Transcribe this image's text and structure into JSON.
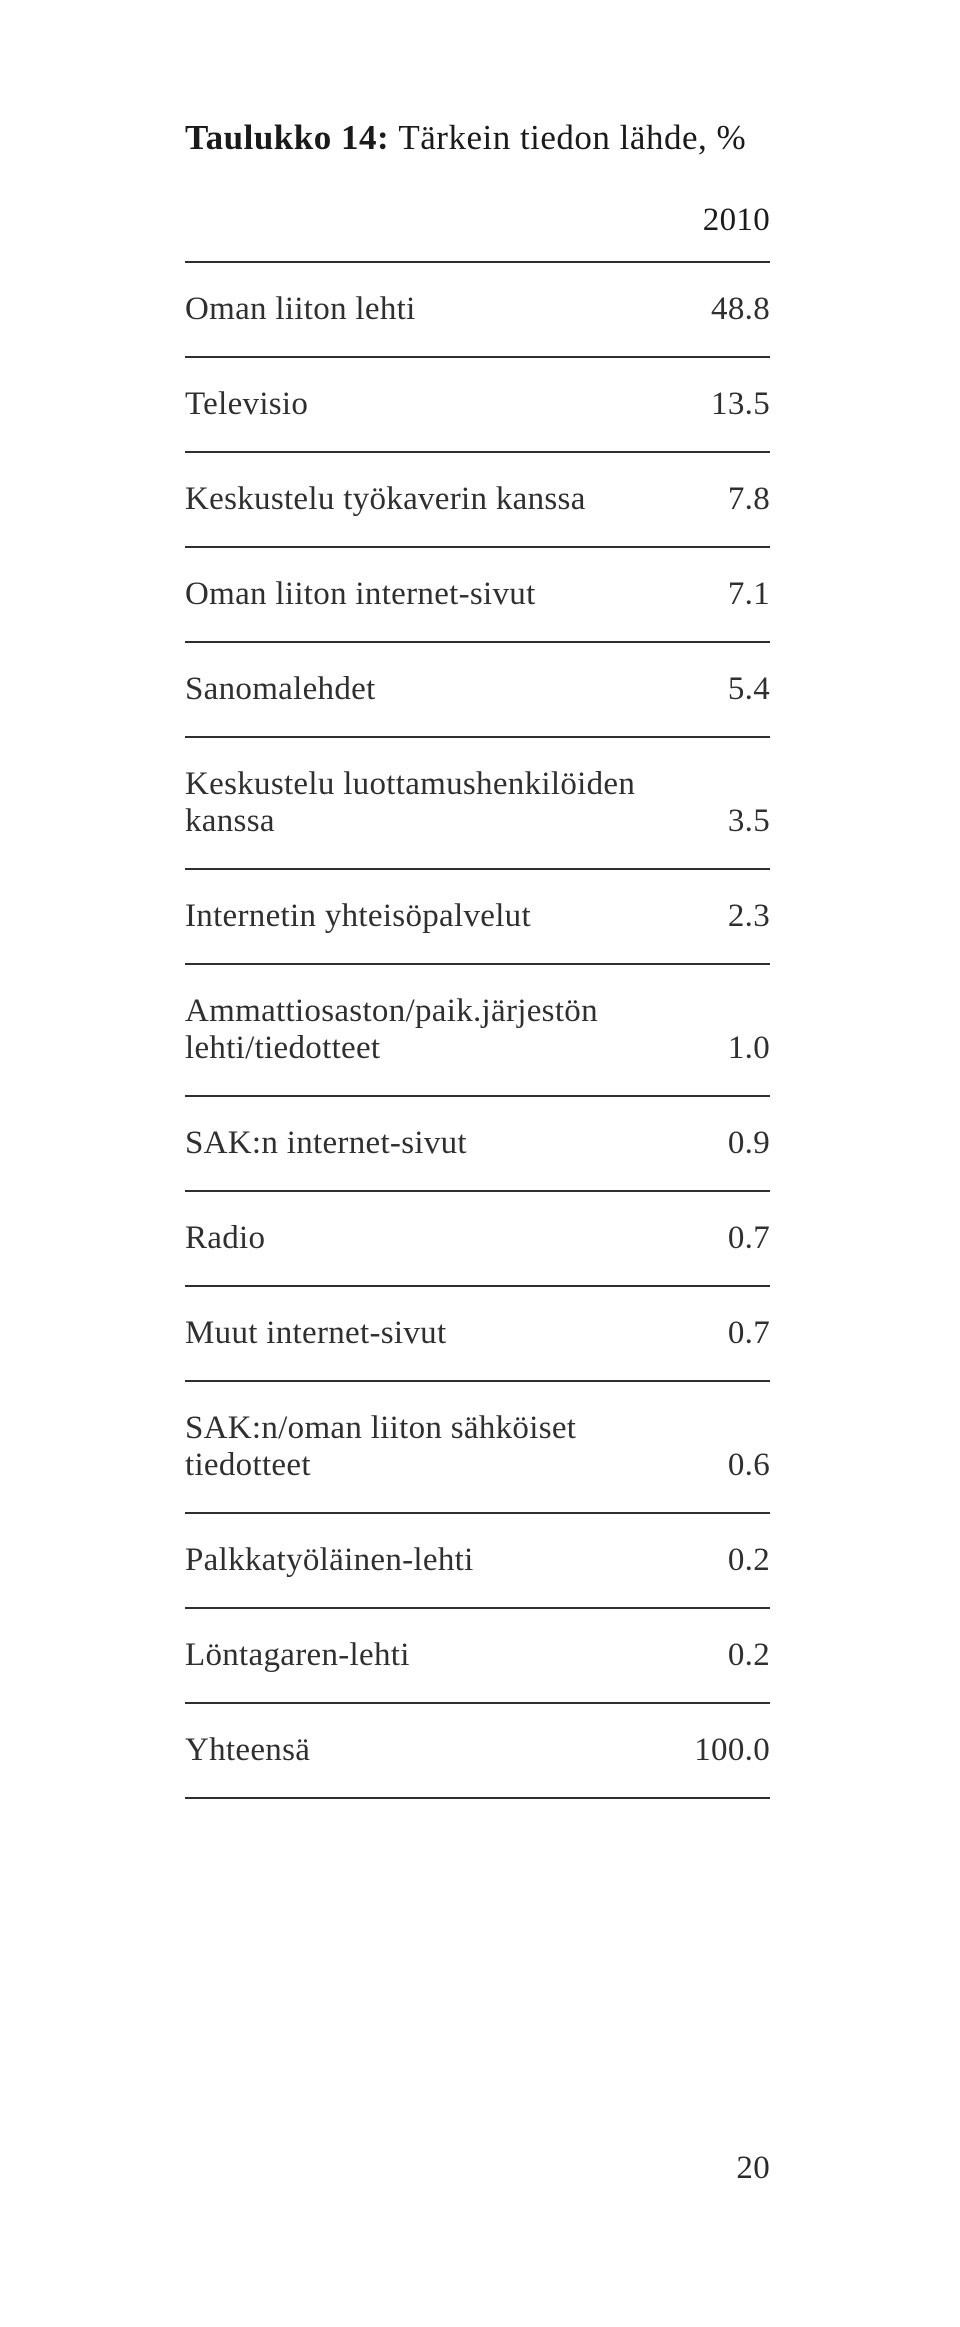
{
  "title_bold": "Taulukko 14: ",
  "title_rest": "Tärkein tiedon lähde, %",
  "header": "2010",
  "rows": [
    {
      "label": "Oman liiton lehti",
      "value": "48.8"
    },
    {
      "label": "Televisio",
      "value": "13.5"
    },
    {
      "label": "Keskustelu työkaverin kanssa",
      "value": "7.8"
    },
    {
      "label": "Oman liiton internet-sivut",
      "value": "7.1"
    },
    {
      "label": "Sanomalehdet",
      "value": "5.4"
    },
    {
      "label": "Keskustelu luottamushenkilöiden kanssa",
      "value": "3.5"
    },
    {
      "label": "Internetin yhteisöpalvelut",
      "value": "2.3"
    },
    {
      "label": "Ammattiosaston/paik.järjestön lehti/tiedotteet",
      "value": "1.0"
    },
    {
      "label": "SAK:n internet-sivut",
      "value": "0.9"
    },
    {
      "label": "Radio",
      "value": "0.7"
    },
    {
      "label": "Muut internet-sivut",
      "value": "0.7"
    },
    {
      "label": "SAK:n/oman liiton sähköiset tiedotteet",
      "value": "0.6"
    },
    {
      "label": "Palkkatyöläinen-lehti",
      "value": "0.2"
    },
    {
      "label": "Löntagaren-lehti",
      "value": "0.2"
    },
    {
      "label": "Yhteensä",
      "value": "100.0"
    }
  ],
  "page_number": "20",
  "colors": {
    "text": "#2f2f2f",
    "border": "#2f2f2f",
    "background": "#ffffff"
  },
  "typography": {
    "title_fontsize": 35,
    "row_fontsize": 33
  }
}
